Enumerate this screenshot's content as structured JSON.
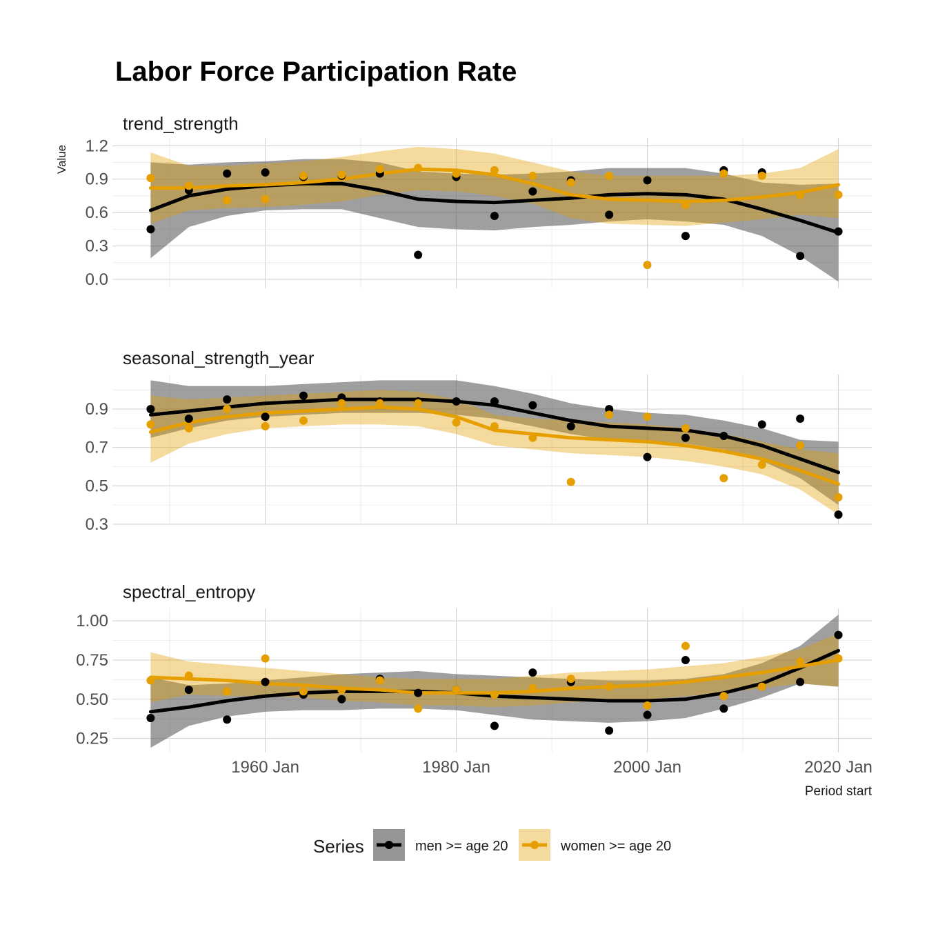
{
  "chart_data": {
    "type": "scatter",
    "title": "Labor Force Participation Rate",
    "ylabel": "Value",
    "xlabel": "Period start",
    "x_ticks": [
      "1960 Jan",
      "1980 Jan",
      "2000 Jan",
      "2020 Jan"
    ],
    "legend": {
      "title": "Series",
      "position": "bottom"
    },
    "series_names": [
      "men >= age 20",
      "women >= age 20"
    ],
    "colors": {
      "men >= age 20": "#000000",
      "women >= age 20": "#E69F00"
    },
    "x": [
      1948,
      1952,
      1956,
      1960,
      1964,
      1968,
      1972,
      1976,
      1980,
      1984,
      1988,
      1992,
      1996,
      2000,
      2004,
      2008,
      2012,
      2016,
      2020
    ],
    "panels": [
      {
        "name": "trend_strength",
        "ylim": [
          -0.08,
          1.27
        ],
        "y_ticks": [
          0.0,
          0.3,
          0.6,
          0.9,
          1.2
        ],
        "series": [
          {
            "name": "men >= age 20",
            "values": [
              0.45,
              0.8,
              0.95,
              0.96,
              0.92,
              0.93,
              0.95,
              0.22,
              0.92,
              0.57,
              0.79,
              0.89,
              0.58,
              0.89,
              0.39,
              0.98,
              0.96,
              0.21,
              0.43
            ],
            "smooth": [
              0.62,
              0.75,
              0.81,
              0.84,
              0.86,
              0.86,
              0.8,
              0.72,
              0.7,
              0.69,
              0.71,
              0.73,
              0.76,
              0.77,
              0.76,
              0.72,
              0.63,
              0.53,
              0.42
            ],
            "band_lower": [
              0.19,
              0.47,
              0.57,
              0.62,
              0.63,
              0.63,
              0.55,
              0.47,
              0.45,
              0.44,
              0.47,
              0.49,
              0.52,
              0.54,
              0.52,
              0.49,
              0.39,
              0.21,
              -0.02
            ],
            "band_upper": [
              1.05,
              1.03,
              1.05,
              1.06,
              1.08,
              1.08,
              1.05,
              0.97,
              0.95,
              0.94,
              0.95,
              0.97,
              1.0,
              1.0,
              1.0,
              0.95,
              0.87,
              0.85,
              0.86
            ]
          },
          {
            "name": "women >= age 20",
            "values": [
              0.91,
              0.84,
              0.71,
              0.72,
              0.93,
              0.94,
              0.99,
              1.0,
              0.95,
              0.98,
              0.93,
              0.87,
              0.93,
              0.13,
              0.67,
              0.95,
              0.93,
              0.76,
              0.76
            ],
            "smooth": [
              0.82,
              0.82,
              0.84,
              0.85,
              0.87,
              0.9,
              0.95,
              0.99,
              0.98,
              0.94,
              0.86,
              0.76,
              0.72,
              0.71,
              0.7,
              0.71,
              0.74,
              0.78,
              0.85
            ],
            "band_lower": [
              0.5,
              0.62,
              0.64,
              0.65,
              0.67,
              0.7,
              0.76,
              0.8,
              0.79,
              0.75,
              0.68,
              0.55,
              0.5,
              0.49,
              0.48,
              0.51,
              0.54,
              0.58,
              0.55
            ],
            "band_upper": [
              1.14,
              1.02,
              1.02,
              1.04,
              1.06,
              1.1,
              1.15,
              1.19,
              1.17,
              1.13,
              1.05,
              0.97,
              0.93,
              0.93,
              0.93,
              0.93,
              0.95,
              1.0,
              1.17
            ]
          }
        ]
      },
      {
        "name": "seasonal_strength_year",
        "ylim": [
          0.3,
          1.08
        ],
        "y_ticks": [
          0.3,
          0.5,
          0.7,
          0.9
        ],
        "series": [
          {
            "name": "men >= age 20",
            "values": [
              0.9,
              0.85,
              0.95,
              0.86,
              0.97,
              0.96,
              0.94,
              0.94,
              0.94,
              0.94,
              0.92,
              0.81,
              0.9,
              0.65,
              0.75,
              0.76,
              0.82,
              0.85,
              0.35
            ],
            "smooth": [
              0.87,
              0.89,
              0.91,
              0.93,
              0.94,
              0.95,
              0.95,
              0.95,
              0.94,
              0.92,
              0.88,
              0.84,
              0.81,
              0.8,
              0.79,
              0.76,
              0.71,
              0.64,
              0.57
            ],
            "band_lower": [
              0.75,
              0.8,
              0.84,
              0.86,
              0.87,
              0.88,
              0.88,
              0.88,
              0.87,
              0.85,
              0.81,
              0.77,
              0.74,
              0.73,
              0.72,
              0.69,
              0.63,
              0.54,
              0.4
            ],
            "band_upper": [
              1.05,
              1.02,
              1.02,
              1.02,
              1.03,
              1.04,
              1.05,
              1.05,
              1.05,
              1.02,
              0.98,
              0.93,
              0.9,
              0.88,
              0.87,
              0.84,
              0.8,
              0.74,
              0.73
            ]
          },
          {
            "name": "women >= age 20",
            "values": [
              0.82,
              0.8,
              0.9,
              0.81,
              0.84,
              0.93,
              0.93,
              0.93,
              0.83,
              0.81,
              0.75,
              0.52,
              0.87,
              0.86,
              0.8,
              0.54,
              0.61,
              0.71,
              0.44
            ],
            "smooth": [
              0.78,
              0.83,
              0.86,
              0.88,
              0.89,
              0.9,
              0.91,
              0.9,
              0.86,
              0.79,
              0.77,
              0.75,
              0.74,
              0.73,
              0.71,
              0.68,
              0.64,
              0.58,
              0.51
            ],
            "band_lower": [
              0.62,
              0.72,
              0.77,
              0.8,
              0.81,
              0.82,
              0.82,
              0.81,
              0.77,
              0.71,
              0.69,
              0.67,
              0.66,
              0.65,
              0.63,
              0.6,
              0.56,
              0.48,
              0.35
            ],
            "band_upper": [
              0.97,
              0.95,
              0.96,
              0.97,
              0.98,
              0.99,
              1.0,
              0.99,
              0.95,
              0.87,
              0.85,
              0.84,
              0.83,
              0.82,
              0.8,
              0.77,
              0.73,
              0.69,
              0.67
            ]
          }
        ]
      },
      {
        "name": "spectral_entropy",
        "ylim": [
          0.16,
          1.08
        ],
        "y_ticks": [
          0.25,
          0.5,
          0.75,
          1.0
        ],
        "series": [
          {
            "name": "men >= age 20",
            "values": [
              0.38,
              0.56,
              0.37,
              0.61,
              0.53,
              0.5,
              0.63,
              0.54,
              0.56,
              0.33,
              0.67,
              0.61,
              0.3,
              0.4,
              0.75,
              0.44,
              0.58,
              0.61,
              0.91
            ],
            "smooth": [
              0.42,
              0.45,
              0.49,
              0.52,
              0.54,
              0.55,
              0.55,
              0.55,
              0.54,
              0.52,
              0.51,
              0.5,
              0.49,
              0.49,
              0.5,
              0.54,
              0.6,
              0.7,
              0.81
            ],
            "band_lower": [
              0.19,
              0.33,
              0.39,
              0.42,
              0.43,
              0.43,
              0.44,
              0.44,
              0.43,
              0.4,
              0.37,
              0.36,
              0.35,
              0.36,
              0.38,
              0.44,
              0.51,
              0.6,
              0.58
            ],
            "band_upper": [
              0.64,
              0.59,
              0.6,
              0.62,
              0.64,
              0.66,
              0.67,
              0.68,
              0.66,
              0.65,
              0.64,
              0.63,
              0.62,
              0.62,
              0.63,
              0.66,
              0.73,
              0.84,
              1.04
            ]
          },
          {
            "name": "women >= age 20",
            "values": [
              0.62,
              0.65,
              0.55,
              0.76,
              0.55,
              0.56,
              0.62,
              0.44,
              0.56,
              0.53,
              0.57,
              0.63,
              0.58,
              0.46,
              0.84,
              0.52,
              0.58,
              0.74,
              0.76
            ],
            "smooth": [
              0.64,
              0.63,
              0.62,
              0.6,
              0.59,
              0.57,
              0.56,
              0.54,
              0.54,
              0.54,
              0.55,
              0.57,
              0.58,
              0.59,
              0.61,
              0.64,
              0.67,
              0.71,
              0.75
            ],
            "band_lower": [
              0.48,
              0.53,
              0.52,
              0.52,
              0.51,
              0.49,
              0.48,
              0.46,
              0.46,
              0.45,
              0.46,
              0.48,
              0.49,
              0.5,
              0.52,
              0.54,
              0.57,
              0.6,
              0.58
            ],
            "band_upper": [
              0.8,
              0.74,
              0.72,
              0.7,
              0.68,
              0.66,
              0.64,
              0.63,
              0.63,
              0.63,
              0.65,
              0.67,
              0.68,
              0.69,
              0.71,
              0.73,
              0.77,
              0.82,
              0.92
            ]
          }
        ]
      }
    ]
  }
}
